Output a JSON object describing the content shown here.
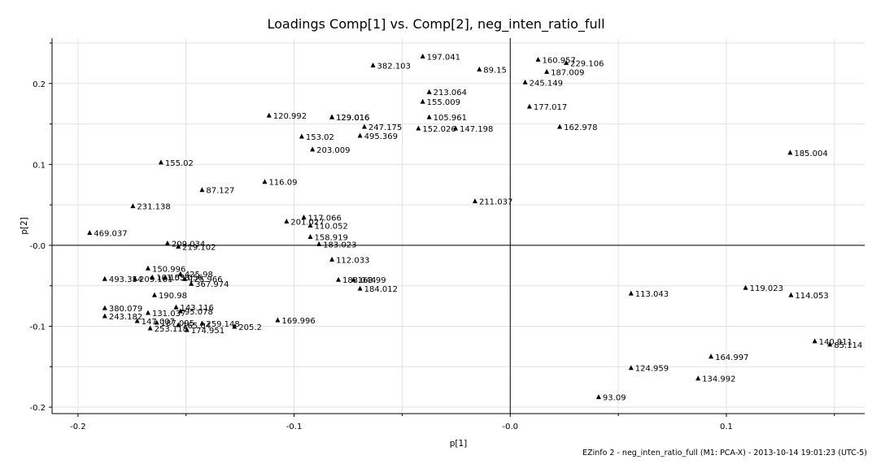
{
  "chart_data": {
    "type": "scatter",
    "title": "Loadings Comp[1] vs. Comp[2], neg_inten_ratio_full",
    "xlabel": "p[1]",
    "ylabel": "p[2]",
    "xlim": [
      -0.212,
      0.164
    ],
    "ylim": [
      -0.208,
      0.256
    ],
    "xticks": [
      -0.2,
      -0.1,
      0.0,
      0.1
    ],
    "xtick_labels": [
      "-0.2",
      "-0.1",
      "-0.0",
      "0.1"
    ],
    "yticks": [
      -0.2,
      -0.1,
      0.0,
      0.1,
      0.2
    ],
    "ytick_labels": [
      "-0.2",
      "-0.1",
      "-0.0",
      "0.1",
      "0.2"
    ],
    "grid": true,
    "zero_lines": true,
    "marker": "triangle",
    "points": [
      {
        "label": "197.041",
        "x": -0.0405,
        "y": 0.2335
      },
      {
        "label": "382.103",
        "x": -0.0635,
        "y": 0.2225
      },
      {
        "label": "89.15",
        "x": -0.0143,
        "y": 0.2175
      },
      {
        "label": "160.957",
        "x": 0.0129,
        "y": 0.2295
      },
      {
        "label": "229.106",
        "x": 0.0259,
        "y": 0.2255
      },
      {
        "label": "187.009",
        "x": 0.0169,
        "y": 0.2145
      },
      {
        "label": "245.149",
        "x": 0.0069,
        "y": 0.2015
      },
      {
        "label": "213.064",
        "x": -0.0375,
        "y": 0.1895
      },
      {
        "label": "155.009",
        "x": -0.0405,
        "y": 0.1775
      },
      {
        "label": "177.017",
        "x": 0.0089,
        "y": 0.1715
      },
      {
        "label": "120.992",
        "x": -0.1116,
        "y": 0.1605
      },
      {
        "label": "129.016",
        "x": -0.0825,
        "y": 0.1585
      },
      {
        "label": "129.016",
        "x": -0.0825,
        "y": 0.1585
      },
      {
        "label": "105.961",
        "x": -0.0375,
        "y": 0.1585
      },
      {
        "label": "247.175",
        "x": -0.0675,
        "y": 0.1465
      },
      {
        "label": "152.026",
        "x": -0.0425,
        "y": 0.1445
      },
      {
        "label": "147.198",
        "x": -0.0253,
        "y": 0.1445
      },
      {
        "label": "162.978",
        "x": 0.0229,
        "y": 0.1465
      },
      {
        "label": "495.369",
        "x": -0.0695,
        "y": 0.1355
      },
      {
        "label": "153.02",
        "x": -0.0965,
        "y": 0.1345
      },
      {
        "label": "203.009",
        "x": -0.0915,
        "y": 0.1185
      },
      {
        "label": "185.004",
        "x": 0.1295,
        "y": 0.1145
      },
      {
        "label": "155.02",
        "x": -0.1616,
        "y": 0.1025
      },
      {
        "label": "116.09",
        "x": -0.1136,
        "y": 0.0785
      },
      {
        "label": "87.127",
        "x": -0.1426,
        "y": 0.0685
      },
      {
        "label": "211.037",
        "x": -0.0163,
        "y": 0.0545
      },
      {
        "label": "231.138",
        "x": -0.1746,
        "y": 0.0485
      },
      {
        "label": "117.066",
        "x": -0.0955,
        "y": 0.0345
      },
      {
        "label": "201.027",
        "x": -0.1035,
        "y": 0.0295
      },
      {
        "label": "110.052",
        "x": -0.0925,
        "y": 0.0245
      },
      {
        "label": "469.037",
        "x": -0.1946,
        "y": 0.0155
      },
      {
        "label": "158.919",
        "x": -0.0925,
        "y": 0.0105
      },
      {
        "label": "209.034",
        "x": -0.1586,
        "y": 0.0025
      },
      {
        "label": "183.023",
        "x": -0.0885,
        "y": 0.0015
      },
      {
        "label": "219.102",
        "x": -0.1536,
        "y": -0.0015
      },
      {
        "label": "112.033",
        "x": -0.0825,
        "y": -0.0175
      },
      {
        "label": "150.996",
        "x": -0.1676,
        "y": -0.0285
      },
      {
        "label": "425.98",
        "x": -0.1526,
        "y": -0.0355
      },
      {
        "label": "493.354",
        "x": -0.1876,
        "y": -0.0415
      },
      {
        "label": "209.101",
        "x": -0.1736,
        "y": -0.0415
      },
      {
        "label": "101.058",
        "x": -0.1656,
        "y": -0.0395
      },
      {
        "label": "153.056",
        "x": -0.1596,
        "y": -0.0395
      },
      {
        "label": "125.966",
        "x": -0.1506,
        "y": -0.0415
      },
      {
        "label": "367.974",
        "x": -0.1476,
        "y": -0.0475
      },
      {
        "label": "183.044",
        "x": -0.0795,
        "y": -0.0425
      },
      {
        "label": "163.99",
        "x": -0.0725,
        "y": -0.0425
      },
      {
        "label": "184.012",
        "x": -0.0695,
        "y": -0.0535
      },
      {
        "label": "190.98",
        "x": -0.1646,
        "y": -0.0615
      },
      {
        "label": "113.043",
        "x": 0.0559,
        "y": -0.0595
      },
      {
        "label": "119.023",
        "x": 0.1089,
        "y": -0.0525
      },
      {
        "label": "114.053",
        "x": 0.1299,
        "y": -0.0615
      },
      {
        "label": "380.079",
        "x": -0.1876,
        "y": -0.0775
      },
      {
        "label": "143.116",
        "x": -0.1546,
        "y": -0.0765
      },
      {
        "label": "131.037",
        "x": -0.1676,
        "y": -0.0835
      },
      {
        "label": "95.078",
        "x": -0.1526,
        "y": -0.0815
      },
      {
        "label": "243.182",
        "x": -0.1876,
        "y": -0.0875
      },
      {
        "label": "147.007",
        "x": -0.1726,
        "y": -0.0935
      },
      {
        "label": "187.095",
        "x": -0.1636,
        "y": -0.0955
      },
      {
        "label": "169.996",
        "x": -0.1076,
        "y": -0.0925
      },
      {
        "label": "259.148",
        "x": -0.1426,
        "y": -0.0965
      },
      {
        "label": "165.04",
        "x": -0.1536,
        "y": -0.0985
      },
      {
        "label": "205.2",
        "x": -0.1276,
        "y": -0.1005
      },
      {
        "label": "253.118",
        "x": -0.1666,
        "y": -0.1025
      },
      {
        "label": "174.951",
        "x": -0.1496,
        "y": -0.1045
      },
      {
        "label": "140.911",
        "x": 0.1409,
        "y": -0.1185
      },
      {
        "label": "85.114",
        "x": 0.1479,
        "y": -0.1225
      },
      {
        "label": "164.997",
        "x": 0.0929,
        "y": -0.1375
      },
      {
        "label": "124.959",
        "x": 0.0559,
        "y": -0.1515
      },
      {
        "label": "134.992",
        "x": 0.0869,
        "y": -0.1645
      },
      {
        "label": "93.09",
        "x": 0.0409,
        "y": -0.1875
      }
    ]
  },
  "footer_text": "EZinfo 2 - neg_inten_ratio_full (M1: PCA-X) - 2013-10-14 19:01:23 (UTC-5)"
}
